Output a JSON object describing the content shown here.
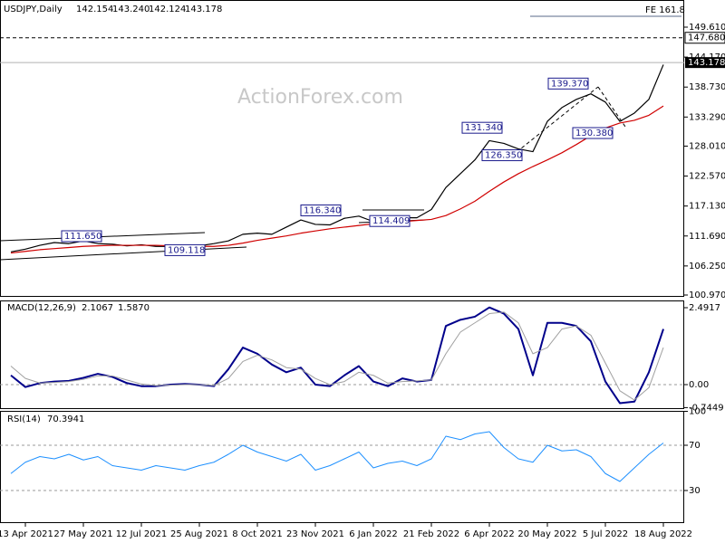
{
  "chart_data": [
    {
      "type": "line",
      "symbol": "USDJPY,Daily",
      "ohlc": [
        142.154,
        143.24,
        142.124,
        143.178
      ],
      "ohlc_labels": [
        "142.154",
        "143.240",
        "142.124",
        "143.178"
      ],
      "watermark": "ActionForex.com",
      "fe_label": "FE 161.8",
      "ylim": [
        100.64,
        154.54
      ],
      "yticks": [
        {
          "value": 100.97,
          "label": "100.970"
        },
        {
          "value": 106.25,
          "label": "106.250"
        },
        {
          "value": 111.69,
          "label": "111.690"
        },
        {
          "value": 117.13,
          "label": "117.130"
        },
        {
          "value": 122.57,
          "label": "122.570"
        },
        {
          "value": 128.01,
          "label": "128.010"
        },
        {
          "value": 133.29,
          "label": "133.290"
        },
        {
          "value": 138.73,
          "label": "138.730"
        },
        {
          "value": 144.17,
          "label": "144.170"
        },
        {
          "value": 149.61,
          "label": "149.610"
        }
      ],
      "levels": [
        {
          "value": 147.68,
          "label": "147.680"
        }
      ],
      "last_price": {
        "value": 143.178,
        "label": "143.178"
      },
      "annotations": [
        {
          "value": 111.65,
          "label": "111.650"
        },
        {
          "value": 109.118,
          "label": "109.118"
        },
        {
          "value": 116.34,
          "label": "116.340"
        },
        {
          "value": 114.409,
          "label": "114.409"
        },
        {
          "value": 131.34,
          "label": "131.340"
        },
        {
          "value": 126.35,
          "label": "126.350"
        },
        {
          "value": 139.37,
          "label": "139.370"
        },
        {
          "value": 130.38,
          "label": "130.380"
        }
      ],
      "series": [
        {
          "color": "#000000",
          "values": [
            108.8,
            109.3,
            110.0,
            110.5,
            110.3,
            110.8,
            110.3,
            110.2,
            109.9,
            110.1,
            109.8,
            109.8,
            109.6,
            109.9,
            110.3,
            110.8,
            112.0,
            112.2,
            112.0,
            113.3,
            114.6,
            113.8,
            113.7,
            114.9,
            115.3,
            114.3,
            114.6,
            115.0,
            115.0,
            116.5,
            120.5,
            123.0,
            125.5,
            129.0,
            128.5,
            127.5,
            127.0,
            132.5,
            135.0,
            136.5,
            137.5,
            136.0,
            132.5,
            134.0,
            136.5,
            142.8
          ]
        },
        {
          "color": "#d00000",
          "values": [
            108.6,
            108.9,
            109.2,
            109.4,
            109.6,
            109.8,
            109.9,
            110.0,
            110.0,
            110.0,
            110.0,
            109.9,
            109.9,
            109.8,
            109.8,
            110.0,
            110.4,
            110.9,
            111.3,
            111.7,
            112.2,
            112.6,
            113.0,
            113.3,
            113.6,
            113.9,
            114.1,
            114.3,
            114.5,
            114.7,
            115.4,
            116.6,
            118.0,
            119.8,
            121.5,
            123.0,
            124.3,
            125.5,
            126.8,
            128.3,
            129.9,
            131.3,
            132.2,
            132.7,
            133.6,
            135.3
          ]
        }
      ]
    },
    {
      "type": "line",
      "title": "MACD(12,26,9)",
      "readout": [
        2.1067,
        1.587
      ],
      "readout_labels": [
        "2.1067",
        "1.5870"
      ],
      "ylim": [
        -0.792,
        2.726
      ],
      "yticks": [
        -0.7449,
        {
          "value": 0,
          "label": "0.00"
        },
        2.4917
      ],
      "series": [
        {
          "color": "#00008b",
          "width": 2,
          "values": [
            0.3,
            -0.08,
            0.05,
            0.1,
            0.12,
            0.22,
            0.35,
            0.25,
            0.05,
            -0.05,
            -0.05,
            0.0,
            0.02,
            0.0,
            -0.05,
            0.5,
            1.2,
            1.0,
            0.65,
            0.4,
            0.55,
            0.0,
            -0.05,
            0.3,
            0.6,
            0.1,
            -0.05,
            0.2,
            0.1,
            0.15,
            1.9,
            2.1,
            2.2,
            2.5,
            2.3,
            1.8,
            0.3,
            2.0,
            2.0,
            1.9,
            1.4,
            0.1,
            -0.6,
            -0.55,
            0.4,
            1.8
          ]
        },
        {
          "color": "#a0a0a0",
          "width": 1,
          "values": [
            0.6,
            0.2,
            0.05,
            0.07,
            0.1,
            0.17,
            0.28,
            0.28,
            0.15,
            0.02,
            -0.03,
            -0.02,
            0.0,
            0.0,
            -0.03,
            0.2,
            0.75,
            0.95,
            0.8,
            0.55,
            0.5,
            0.2,
            0.0,
            0.1,
            0.4,
            0.3,
            0.05,
            0.1,
            0.12,
            0.15,
            1.0,
            1.7,
            2.0,
            2.3,
            2.35,
            2.0,
            1.0,
            1.2,
            1.8,
            1.9,
            1.6,
            0.7,
            -0.2,
            -0.5,
            -0.1,
            1.2
          ]
        }
      ]
    },
    {
      "type": "line",
      "title": "RSI(14)",
      "readout": [
        70.3941
      ],
      "ylim": [
        1.2,
        100.4
      ],
      "yticks": [
        30,
        70,
        100
      ],
      "categories": [
        null,
        "13 Apr 2021",
        null,
        null,
        null,
        "27 May 2021",
        null,
        null,
        null,
        "12 Jul 2021",
        null,
        null,
        null,
        "25 Aug 2021",
        null,
        null,
        null,
        "8 Oct 2021",
        null,
        null,
        null,
        "23 Nov 2021",
        null,
        null,
        null,
        "6 Jan 2022",
        null,
        null,
        null,
        "21 Feb 2022",
        null,
        null,
        null,
        "6 Apr 2022",
        null,
        null,
        null,
        "20 May 2022",
        null,
        null,
        null,
        "5 Jul 2022",
        null,
        null,
        null,
        "18 Aug 2022"
      ],
      "series": [
        {
          "color": "#1e90ff",
          "width": 1,
          "values": [
            45,
            55,
            60,
            58,
            62,
            57,
            60,
            52,
            50,
            48,
            52,
            50,
            48,
            52,
            55,
            62,
            70,
            64,
            60,
            56,
            62,
            48,
            52,
            58,
            64,
            50,
            54,
            56,
            52,
            58,
            78,
            75,
            80,
            82,
            68,
            58,
            55,
            70,
            65,
            66,
            60,
            45,
            38,
            50,
            62,
            72
          ]
        }
      ]
    }
  ]
}
